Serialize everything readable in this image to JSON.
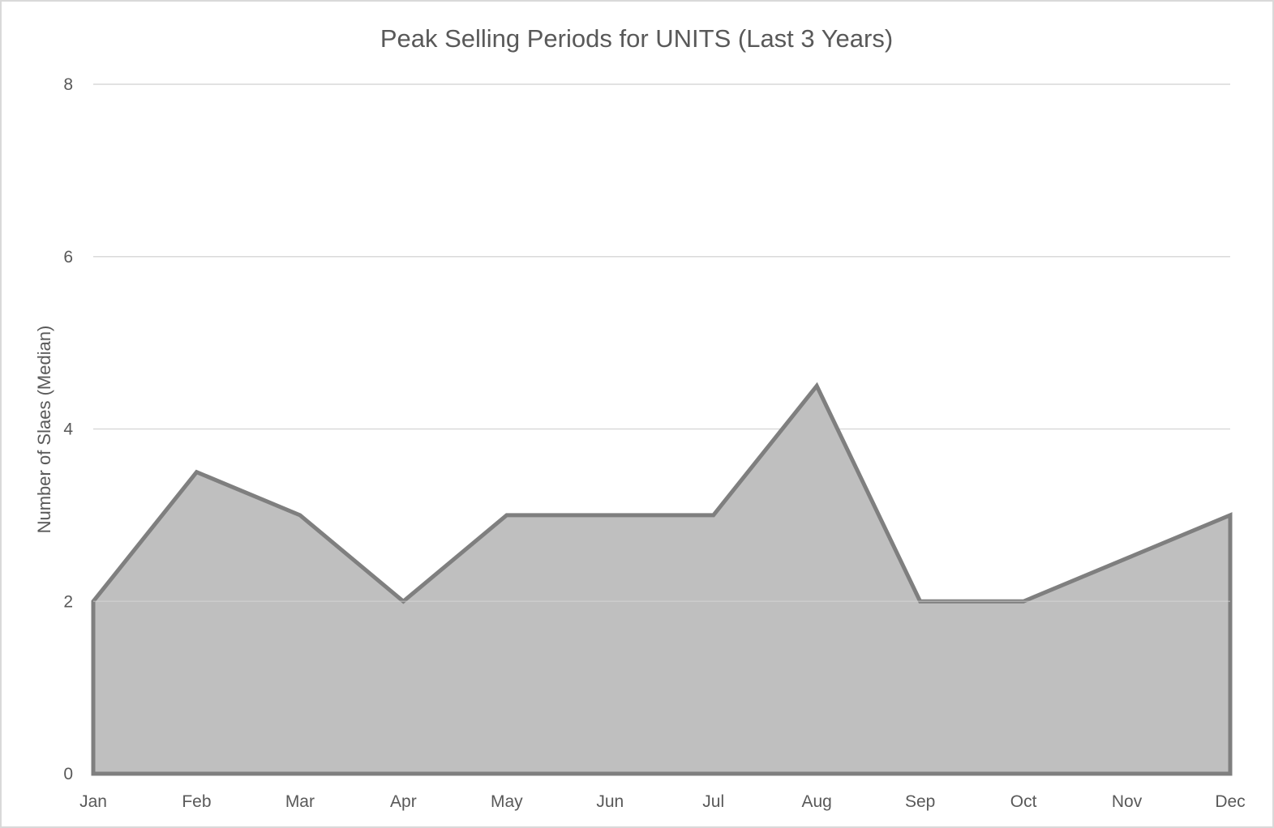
{
  "chart_data": {
    "type": "area",
    "title": "Peak Selling Periods for UNITS (Last 3 Years)",
    "xlabel": "",
    "ylabel": "Number of Slaes (Median)",
    "categories": [
      "Jan",
      "Feb",
      "Mar",
      "Apr",
      "May",
      "Jun",
      "Jul",
      "Aug",
      "Sep",
      "Oct",
      "Nov",
      "Dec"
    ],
    "series": [
      {
        "values": [
          2,
          3.5,
          3,
          2,
          3,
          3,
          3,
          4.5,
          2,
          2,
          2.5,
          3
        ]
      }
    ],
    "ylim": [
      0,
      8
    ],
    "yticks": [
      "0",
      "2",
      "4",
      "6",
      "8"
    ],
    "grid": true,
    "legend": "none",
    "colors": {
      "fill": "#bfbfbf",
      "line": "#7f7f7f"
    }
  }
}
